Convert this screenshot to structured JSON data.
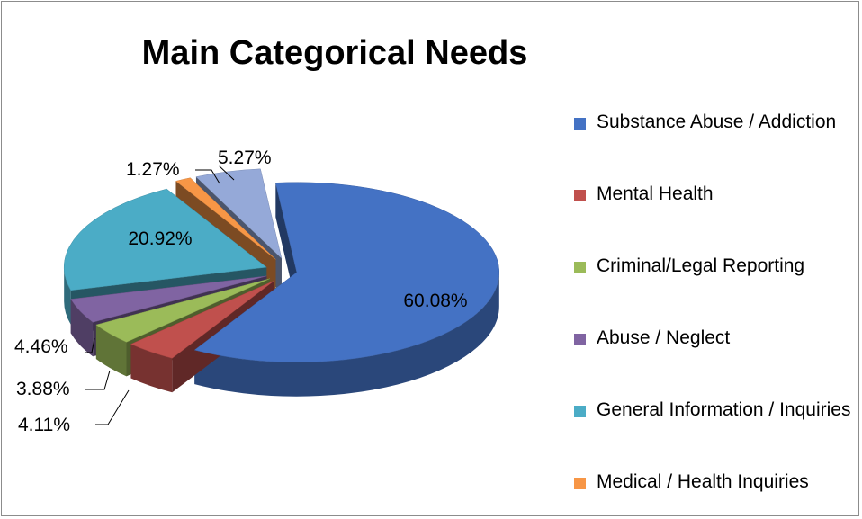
{
  "chart_data": {
    "type": "pie",
    "title": "Main Categorical Needs",
    "slices": [
      {
        "label": "Substance Abuse / Addiction",
        "value": 60.08,
        "display": "60.08%",
        "color": "#4472C4"
      },
      {
        "label": "Mental Health",
        "value": 4.11,
        "display": "4.11%",
        "color": "#C0504D"
      },
      {
        "label": "Criminal/Legal Reporting",
        "value": 3.88,
        "display": "3.88%",
        "color": "#9BBB59"
      },
      {
        "label": "Abuse / Neglect",
        "value": 4.46,
        "display": "4.46%",
        "color": "#8064A2"
      },
      {
        "label": "General Information / Inquiries",
        "value": 20.92,
        "display": "20.92%",
        "color": "#4BACC6"
      },
      {
        "label": "Medical / Health Inquiries",
        "value": 1.27,
        "display": "1.27%",
        "color": "#F79646"
      },
      {
        "label": "",
        "value": 5.27,
        "display": "5.27%",
        "color": "#95A9D8"
      }
    ],
    "legend_position": "right",
    "style": "3d-exploded"
  }
}
